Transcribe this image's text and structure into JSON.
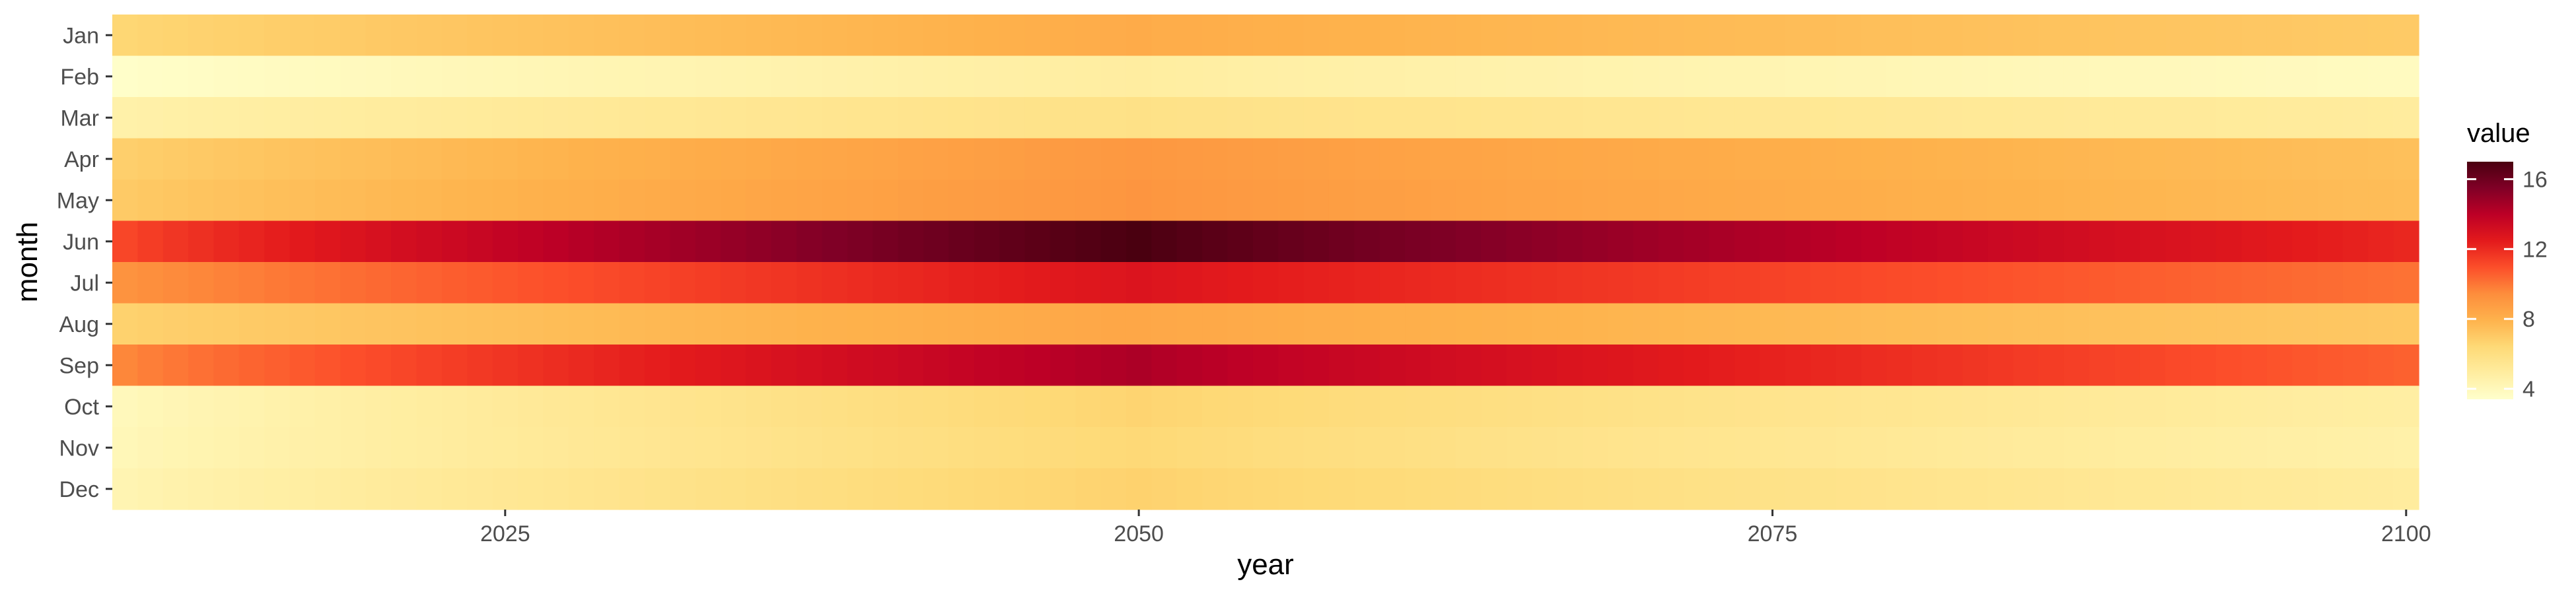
{
  "chart_data": {
    "type": "heatmap",
    "xlabel": "year",
    "ylabel": "month",
    "x_range": [
      2010,
      2100
    ],
    "x_ticks": [
      2025,
      2050,
      2075,
      2100
    ],
    "x_tick_labels": [
      "2025",
      "2050",
      "2075",
      "2100"
    ],
    "months": [
      "Jan",
      "Feb",
      "Mar",
      "Apr",
      "May",
      "Jun",
      "Jul",
      "Aug",
      "Sep",
      "Oct",
      "Nov",
      "Dec"
    ],
    "value_model": "value = start + (peak - start) * ((year - 2010) / 40)^0.85 for year <= 2050; peak + (end - peak) * ((year - 2050) / 50)^0.85 for year > 2050",
    "month_values": {
      "Jan": {
        "start": 6.5,
        "peak": 8.2,
        "end": 7.0
      },
      "Feb": {
        "start": 3.5,
        "peak": 4.9,
        "end": 3.8
      },
      "Mar": {
        "start": 4.6,
        "peak": 5.8,
        "end": 5.0
      },
      "Apr": {
        "start": 6.8,
        "peak": 9.0,
        "end": 7.4
      },
      "May": {
        "start": 7.0,
        "peak": 9.1,
        "end": 7.5
      },
      "Jun": {
        "start": 11.2,
        "peak": 17.0,
        "end": 12.1
      },
      "Jul": {
        "start": 9.2,
        "peak": 12.8,
        "end": 10.1
      },
      "Aug": {
        "start": 6.7,
        "peak": 8.4,
        "end": 7.1
      },
      "Sep": {
        "start": 9.6,
        "peak": 14.4,
        "end": 10.5
      },
      "Oct": {
        "start": 4.0,
        "peak": 6.6,
        "end": 4.8
      },
      "Nov": {
        "start": 4.1,
        "peak": 6.4,
        "end": 4.6
      },
      "Dec": {
        "start": 4.3,
        "peak": 6.7,
        "end": 5.0
      }
    },
    "legend": {
      "title": "value",
      "placement": "right",
      "ticks": [
        4,
        8,
        12,
        16
      ],
      "tick_labels": [
        "4",
        "8",
        "12",
        "16"
      ],
      "domain": [
        3.4,
        17.0
      ]
    },
    "color_scale": {
      "name": "YlOrRd",
      "stops": [
        "#ffffcc",
        "#ffeda0",
        "#fed976",
        "#feb24c",
        "#fd8d3c",
        "#fc4e2a",
        "#e31a1c",
        "#bd0026",
        "#800026",
        "#4a0010"
      ]
    },
    "grid": false
  }
}
